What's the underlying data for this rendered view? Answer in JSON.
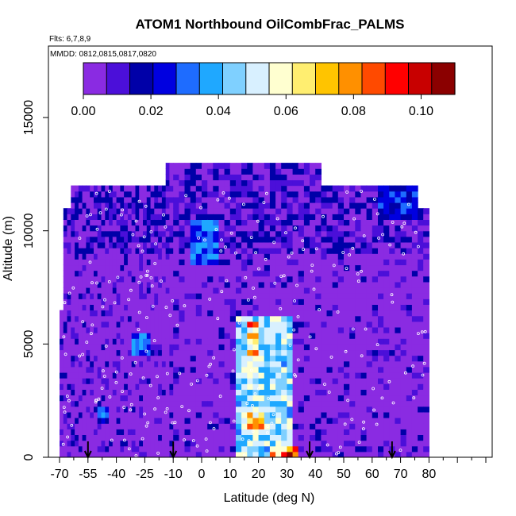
{
  "chart_data": {
    "type": "heatmap",
    "title": "ATOM1 Northbound OilCombFrac_PALMS",
    "flights_note": "Flts: 6,7,8,9",
    "dates_note": "MMDD: 0812,0815,0817,0820",
    "xlabel": "Latitude (deg N)",
    "ylabel": "Altitude (m)",
    "xlim": [
      -70,
      82
    ],
    "ylim": [
      0,
      17500
    ],
    "x_tick_labels": [
      "-70",
      "-55",
      "-40",
      "-25",
      "-10",
      "0",
      "10",
      "20",
      "30",
      "40",
      "50",
      "60",
      "70",
      "80"
    ],
    "y_tick_labels": [
      "0",
      "5000",
      "10000",
      "15000"
    ],
    "colorbar": {
      "min": 0.0,
      "max": 0.11,
      "tick_labels": [
        "0.00",
        "0.02",
        "0.04",
        "0.06",
        "0.08",
        "0.10"
      ],
      "colors": [
        "#8a2be2",
        "#4b0fd9",
        "#0000a8",
        "#0000e0",
        "#1e6cff",
        "#1fa8ff",
        "#7fd0ff",
        "#d8f0ff",
        "#ffffd0",
        "#ffee70",
        "#ffc400",
        "#ff9000",
        "#ff4a00",
        "#ff0000",
        "#c80000",
        "#8b0000"
      ]
    },
    "profile_arrow_latitudes": [
      -55,
      -10,
      38,
      67
    ],
    "profile_extent": [
      {
        "lat_min": -69,
        "lat_max": 80,
        "alt_max": 6500
      },
      {
        "lat_min": -68,
        "lat_max": 80,
        "alt_max": 11000
      },
      {
        "lat_min": -63,
        "lat_max": 75,
        "alt_max": 12000
      },
      {
        "lat_min": -13,
        "lat_max": 41,
        "alt_max": 13000
      }
    ],
    "hotspots": [
      {
        "lat_min": 13,
        "lat_max": 31,
        "alt_min": 0,
        "alt_max": 6200,
        "value": 0.06
      },
      {
        "lat_min": 16,
        "lat_max": 20,
        "alt_min": 4400,
        "alt_max": 6000,
        "value": 0.09
      },
      {
        "lat_min": 16,
        "lat_max": 22,
        "alt_min": 1200,
        "alt_max": 2000,
        "value": 0.09
      },
      {
        "lat_min": 25,
        "lat_max": 33,
        "alt_min": 0,
        "alt_max": 500,
        "value": 0.105
      },
      {
        "lat_min": -3,
        "lat_max": 6,
        "alt_min": 8500,
        "alt_max": 10500,
        "value": 0.04
      },
      {
        "lat_min": -50,
        "lat_max": -45,
        "alt_min": 1500,
        "alt_max": 2300,
        "value": 0.035
      },
      {
        "lat_min": -32,
        "lat_max": -22,
        "alt_min": 4500,
        "alt_max": 5600,
        "value": 0.04
      },
      {
        "lat_min": 62,
        "lat_max": 78,
        "alt_min": 10500,
        "alt_max": 12000,
        "value": 0.03
      }
    ]
  }
}
